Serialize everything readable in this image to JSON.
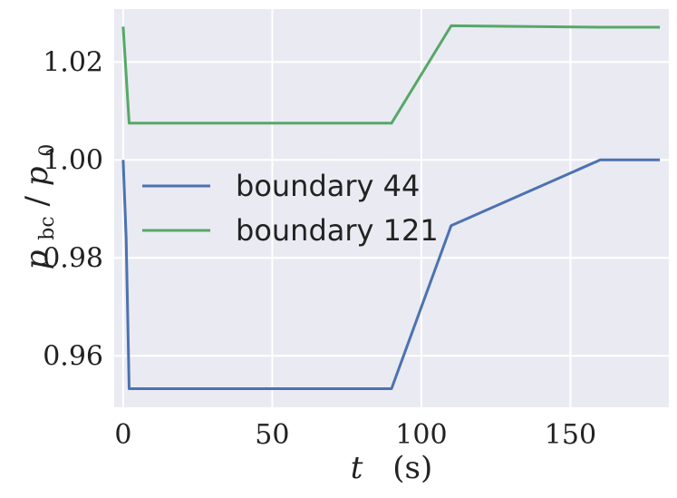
{
  "chart_data": {
    "type": "line",
    "xlabel_var": "t",
    "xlabel_unit": "(s)",
    "ylabel_main": "p",
    "ylabel_sub1": "bc",
    "ylabel_slash": "/",
    "ylabel_sub2": "0",
    "xlim": [
      -3,
      183
    ],
    "ylim": [
      0.9495,
      1.0308
    ],
    "x_ticks": [
      0,
      50,
      100,
      150
    ],
    "x_tick_labels": [
      "0",
      "50",
      "100",
      "150"
    ],
    "y_ticks": [
      0.96,
      0.98,
      1.0,
      1.02
    ],
    "y_tick_labels": [
      "0.96",
      "0.98",
      "1.00",
      "1.02"
    ],
    "grid": true,
    "legend_position": "center-left",
    "series": [
      {
        "name": "boundary 44",
        "color": "#4c72b0",
        "x": [
          0,
          1,
          2,
          90,
          110,
          160,
          180
        ],
        "y": [
          1.0,
          0.984,
          0.9533,
          0.9533,
          0.9866,
          1.0,
          1.0
        ]
      },
      {
        "name": "boundary 121",
        "color": "#55a868",
        "x": [
          0,
          2,
          90,
          110,
          160,
          180
        ],
        "y": [
          1.0272,
          1.0075,
          1.0075,
          1.0274,
          1.0271,
          1.0271
        ]
      }
    ]
  }
}
